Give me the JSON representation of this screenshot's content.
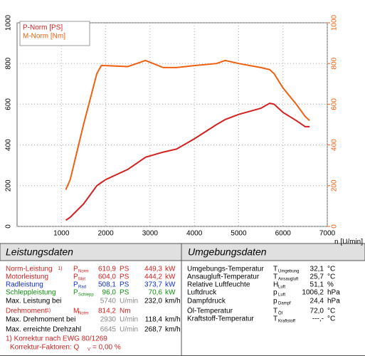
{
  "chart_data": {
    "type": "line",
    "x_label": "n [U/min]",
    "x": [
      1100,
      1200,
      1500,
      1800,
      1900,
      2000,
      2500,
      2900,
      3300,
      3600,
      4000,
      4500,
      4700,
      5000,
      5500,
      5700,
      5800,
      6000,
      6300,
      6500,
      6600
    ],
    "series": [
      {
        "name": "P-Norm [PS]",
        "color": "#d42020",
        "values": [
          30,
          45,
          110,
          200,
          215,
          230,
          280,
          340,
          365,
          380,
          430,
          500,
          525,
          550,
          580,
          605,
          600,
          560,
          520,
          490,
          490
        ]
      },
      {
        "name": "M-Norm [Nm]",
        "color": "#f06010",
        "axis": "y2",
        "values": [
          180,
          230,
          500,
          750,
          790,
          790,
          785,
          815,
          780,
          780,
          790,
          800,
          815,
          800,
          780,
          770,
          750,
          680,
          600,
          540,
          520
        ]
      }
    ],
    "xlim": [
      0,
      7000
    ],
    "xticks": [
      1000,
      2000,
      3000,
      4000,
      5000,
      6000,
      7000
    ],
    "ylim": [
      0,
      1000
    ],
    "yticks": [
      0,
      200,
      400,
      600,
      800,
      1000
    ],
    "y2lim": [
      0,
      1000
    ],
    "y2ticks": [
      0,
      200,
      400,
      600,
      800,
      1000
    ],
    "y2_color": "#f06010",
    "grid": true
  },
  "table": {
    "left": {
      "title": "Leistungsdaten",
      "rows": [
        {
          "label": "Norm-Leistung",
          "note": "1)",
          "color": "#d42020",
          "sym": "P",
          "sub": "Norm",
          "v1": "610,9",
          "u1": "PS",
          "v2": "449,3",
          "u2": "kW"
        },
        {
          "label": "Motorleistung",
          "color": "#d42020",
          "sym": "P",
          "sub": "Mot",
          "v1": "604,0",
          "u1": "PS",
          "v2": "444,2",
          "u2": "kW"
        },
        {
          "label": "Radleistung",
          "color": "#1030d0",
          "sym": "P",
          "sub": "Rad",
          "v1": "508,1",
          "u1": "PS",
          "v2": "373,7",
          "u2": "kW"
        },
        {
          "label": "Schleppleistung",
          "color": "#109010",
          "sym": "P",
          "sub": "Schlepp",
          "v1": "96,0",
          "u1": "PS",
          "v2": "70,6",
          "u2": "kW"
        },
        {
          "label": "Max. Leistung bei",
          "color": "#000000",
          "num_color": "#888888",
          "v1": "5740",
          "u1": "U/min",
          "v2": "232,0",
          "u2": "km/h"
        },
        {
          "label": "Drehmoment",
          "note": "1)",
          "color": "#d42020",
          "sym": "M",
          "sub": "Norm",
          "v1": "814,2",
          "u1": "Nm"
        },
        {
          "label": "Max. Drehmoment bei",
          "color": "#000000",
          "num_color": "#888888",
          "v1": "2930",
          "u1": "U/min",
          "v2": "118,4",
          "u2": "km/h"
        },
        {
          "label": "Max. erreichte Drehzahl",
          "color": "#000000",
          "num_color": "#888888",
          "v1": "6645",
          "u1": "U/min",
          "v2": "268,7",
          "u2": "km/h"
        }
      ],
      "footnote": "1) Korrektur nach EWG 80/1269",
      "factor": "Korrektur-Faktoren: Q",
      "factor_sub": "V",
      "factor_value": "=   0,00 %",
      "foot_color": "#d42020"
    },
    "right": {
      "title": "Umgebungsdaten",
      "rows": [
        {
          "label": "Umgebungs-Temperatur",
          "sym": "T",
          "sub": "Umgebung",
          "v1": "32,1",
          "u1": "°C"
        },
        {
          "label": "Ansaugluft-Temperatur",
          "sym": "T",
          "sub": "Ansaugluft",
          "v1": "25,7",
          "u1": "°C"
        },
        {
          "label": "Relative Luftfeuchte",
          "sym": "H",
          "sub": "Luft",
          "v1": "51,1",
          "u1": "%"
        },
        {
          "label": "Luftdruck",
          "sym": "p",
          "sub": "Luft",
          "v1": "1006,2",
          "u1": "hPa"
        },
        {
          "label": "Dampfdruck",
          "sym": "p",
          "sub": "Dampf",
          "v1": "24,4",
          "u1": "hPa"
        },
        {
          "label": "Öl-Temperatur",
          "sym": "T",
          "sub": "Öl",
          "v1": "72,0",
          "u1": "°C"
        },
        {
          "label": "Kraftstoff-Temperatur",
          "sym": "T",
          "sub": "Kraftstoff",
          "v1": "---,-",
          "u1": "°C"
        }
      ]
    }
  }
}
